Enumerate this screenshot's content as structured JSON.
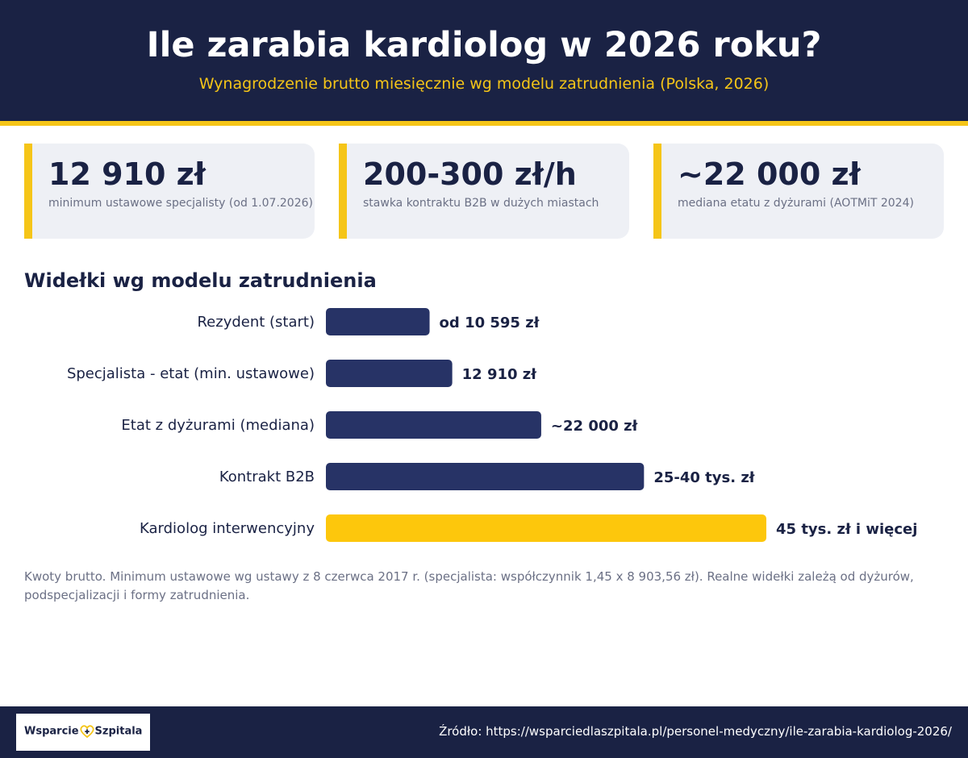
{
  "header": {
    "title": "Ile zarabia kardiolog w 2026 roku?",
    "subtitle": "Wynagrodzenie brutto miesięcznie wg modelu zatrudnienia (Polska, 2026)"
  },
  "stats": [
    {
      "value": "12 910 zł",
      "desc": "minimum ustawowe specjalisty (od 1.07.2026)"
    },
    {
      "value": "200-300 zł/h",
      "desc": "stawka kontraktu B2B w dużych miastach"
    },
    {
      "value": "~22 000 zł",
      "desc": "mediana etatu z dyżurami (AOTMiT 2024)"
    }
  ],
  "section_title": "Widełki wg modelu zatrudnienia",
  "chart_data": {
    "type": "bar",
    "orientation": "horizontal",
    "categories": [
      "Rezydent (start)",
      "Specjalista - etat (min. ustawowe)",
      "Etat z dyżurami (mediana)",
      "Kontrakt B2B",
      "Kardiolog interwencyjny"
    ],
    "values": [
      10595,
      12910,
      22000,
      32500,
      45000
    ],
    "value_labels": [
      "od 10 595 zł",
      "12 910 zł",
      "~22 000 zł",
      "25-40 tys. zł",
      "45 tys. zł i więcej"
    ],
    "colors": [
      "#273366",
      "#273366",
      "#273366",
      "#273366",
      "#fdc70c"
    ],
    "xlim": [
      0,
      50000
    ],
    "grid": false,
    "legend": "none"
  },
  "footnote": "Kwoty brutto. Minimum ustawowe wg ustawy z 8 czerwca 2017 r. (specjalista: współczynnik 1,45 x 8 903,56 zł). Realne widełki zależą od dyżurów, podspecjalizacji i formy zatrudnienia.",
  "footer": {
    "logo_left": "Wsparcie",
    "logo_right": "Szpitala",
    "source": "Źródło: https://wsparciedlaszpitala.pl/personel-medyczny/ile-zarabia-kardiolog-2026/"
  },
  "colors": {
    "navy": "#1a2244",
    "bar": "#273366",
    "accent": "#f5c518",
    "card_bg": "#eef0f5",
    "muted_text": "#6b7085"
  }
}
